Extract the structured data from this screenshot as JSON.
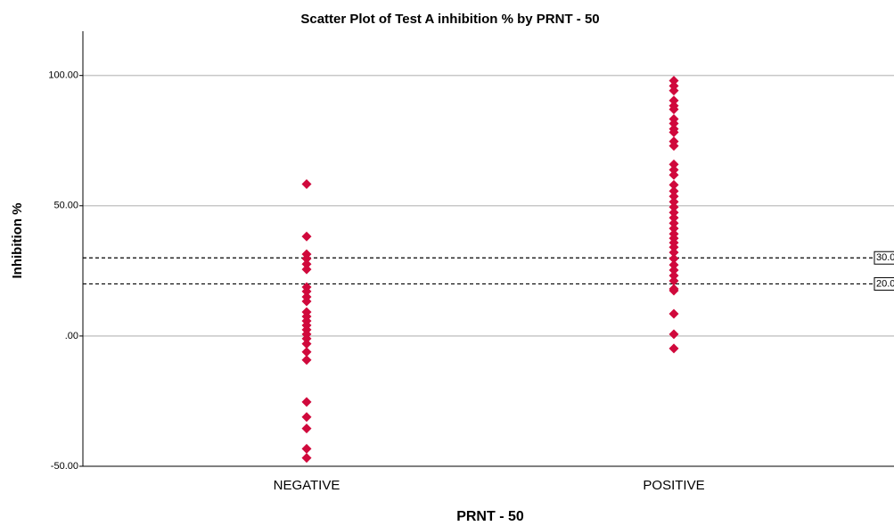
{
  "chart_data": {
    "type": "scatter",
    "title": "Scatter Plot of Test A inhibition % by PRNT - 50",
    "x_label": "PRNT - 50",
    "y_label": "Inhibition %",
    "categories": [
      "NEGATIVE",
      "POSITIVE"
    ],
    "values": [
      [
        58.3,
        38.2,
        31.4,
        29.7,
        27.6,
        25.6,
        18.8,
        17.1,
        15,
        13.3,
        9.2,
        7.5,
        5.8,
        4.1,
        2.4,
        0.7,
        -1,
        -3,
        -6.1,
        -9.2,
        -25.3,
        -31.1,
        -35.5,
        -43.3,
        -46.8
      ],
      [
        98,
        96,
        94.2,
        90.4,
        88.4,
        87,
        83.3,
        81.6,
        79.5,
        78.2,
        74.7,
        73,
        65.9,
        63.8,
        61.8,
        58,
        55.6,
        53.6,
        51.5,
        49.5,
        47.4,
        45.4,
        43.3,
        41.3,
        39.2,
        37.5,
        35.8,
        34.1,
        32.1,
        29.7,
        27.3,
        25.3,
        23.2,
        21.2,
        18.1,
        17.4,
        8.5,
        0.7,
        -4.8
      ]
    ],
    "color": "#d0093c",
    "ylim": [
      -50,
      117
    ],
    "yticks": [
      {
        "value": -50,
        "label": "-50.00"
      },
      {
        "value": 0,
        "label": ".00"
      },
      {
        "value": 50,
        "label": "50.00"
      },
      {
        "value": 100,
        "label": "100.00"
      }
    ],
    "grid": true,
    "reference_lines": [
      {
        "value": 30,
        "label": "30.0"
      },
      {
        "value": 20,
        "label": "20.0"
      }
    ]
  }
}
